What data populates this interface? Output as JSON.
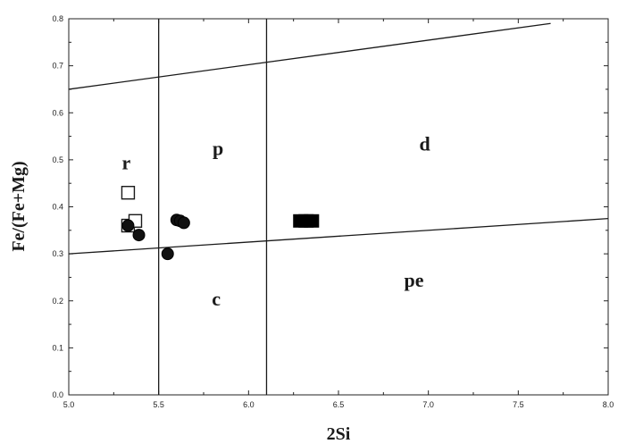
{
  "chart_data": {
    "type": "scatter",
    "xlabel": "2Si",
    "ylabel": "Fe/(Fe+Mg)",
    "xlim": [
      5.0,
      8.0
    ],
    "ylim": [
      0.0,
      0.8
    ],
    "x_ticks": [
      "5.0",
      "5.5",
      "6.0",
      "6.5",
      "7.0",
      "7.5",
      "8.0"
    ],
    "y_ticks": [
      "0.0",
      "0.1",
      "0.2",
      "0.3",
      "0.4",
      "0.5",
      "0.6",
      "0.7",
      "0.8"
    ],
    "grid": false,
    "boundary_lines": [
      {
        "x": [
          5.0,
          7.68
        ],
        "y": [
          0.65,
          0.79
        ]
      },
      {
        "x": [
          5.0,
          8.0
        ],
        "y": [
          0.3,
          0.375
        ]
      },
      {
        "x": [
          5.5,
          5.5
        ],
        "y": [
          0.0,
          0.8
        ]
      },
      {
        "x": [
          6.1,
          6.1
        ],
        "y": [
          0.0,
          0.8
        ]
      }
    ],
    "region_labels": [
      {
        "text": "r",
        "x": 5.32,
        "y": 0.48
      },
      {
        "text": "p",
        "x": 5.83,
        "y": 0.51
      },
      {
        "text": "d",
        "x": 6.98,
        "y": 0.52
      },
      {
        "text": "c",
        "x": 5.82,
        "y": 0.19
      },
      {
        "text": "pe",
        "x": 6.92,
        "y": 0.23
      }
    ],
    "series": [
      {
        "marker": "open-square",
        "points": [
          {
            "x": 5.33,
            "y": 0.43
          },
          {
            "x": 5.33,
            "y": 0.36
          },
          {
            "x": 5.37,
            "y": 0.37
          }
        ]
      },
      {
        "marker": "filled-circle",
        "points": [
          {
            "x": 5.33,
            "y": 0.36
          },
          {
            "x": 5.39,
            "y": 0.34
          },
          {
            "x": 5.55,
            "y": 0.3
          },
          {
            "x": 5.6,
            "y": 0.372
          },
          {
            "x": 5.62,
            "y": 0.37
          },
          {
            "x": 5.64,
            "y": 0.366
          }
        ]
      },
      {
        "marker": "filled-square",
        "points": [
          {
            "x": 6.29,
            "y": 0.37
          },
          {
            "x": 6.32,
            "y": 0.37
          },
          {
            "x": 6.35,
            "y": 0.37
          }
        ]
      }
    ]
  }
}
